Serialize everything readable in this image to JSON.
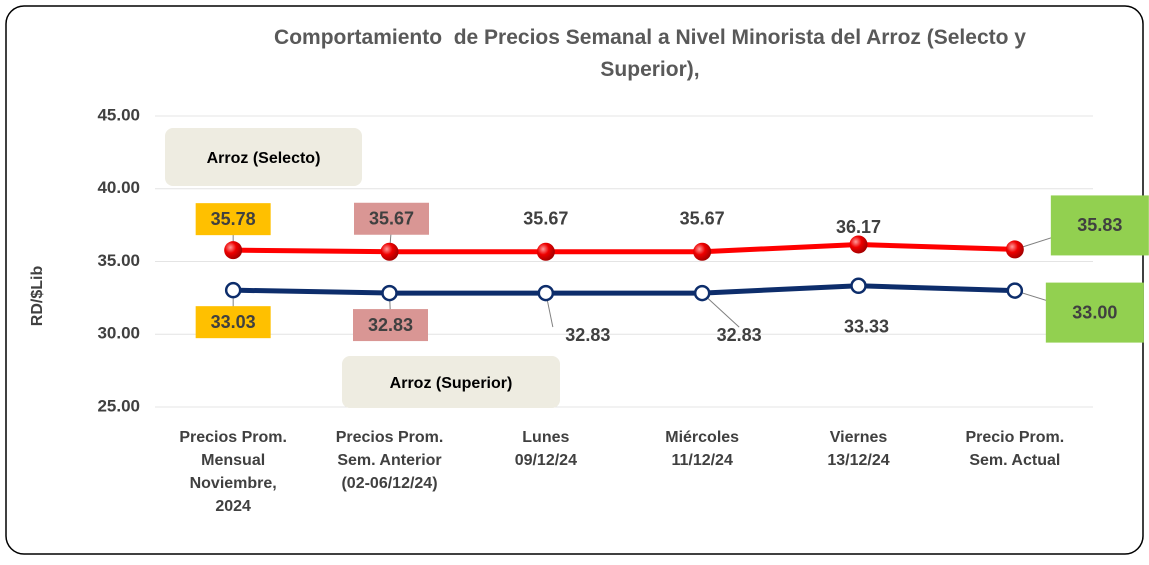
{
  "chart_data": {
    "type": "line",
    "title": "Comportamiento  de Precios Semanal a Nivel Minorista del Arroz (Selecto y\nSuperior),",
    "y_label": "RD/$Lib",
    "categories": [
      "Precios Prom.\nMensual\nNoviembre,\n2024",
      "Precios Prom.\nSem. Anterior\n(02-06/12/24)",
      "Lunes\n09/12/24",
      "Miércoles\n11/12/24",
      "Viernes\n13/12/24",
      "Precio Prom.\nSem. Actual"
    ],
    "series": [
      {
        "name": "Arroz (Selecto)",
        "color": "#ff0000",
        "values": [
          35.78,
          35.67,
          35.67,
          35.67,
          36.17,
          35.83
        ]
      },
      {
        "name": "Arroz (Superior)",
        "color": "#0d2d6b",
        "values": [
          33.03,
          32.83,
          32.83,
          32.83,
          33.33,
          33.0
        ],
        "value_labels": [
          "33.03",
          "32.83",
          "32.83",
          "32.83",
          "33.33",
          "33.00"
        ]
      }
    ],
    "label_box_colors": [
      "#ffc000",
      "#d99694",
      null,
      null,
      null,
      "#92d050"
    ],
    "ylim": [
      25,
      45
    ],
    "yticks": [
      {
        "value": 25,
        "label": "25.00"
      },
      {
        "value": 30,
        "label": "30.00"
      },
      {
        "value": 35,
        "label": "35.00"
      },
      {
        "value": 40,
        "label": "40.00"
      },
      {
        "value": 45,
        "label": "45.00"
      }
    ],
    "grid": true
  }
}
